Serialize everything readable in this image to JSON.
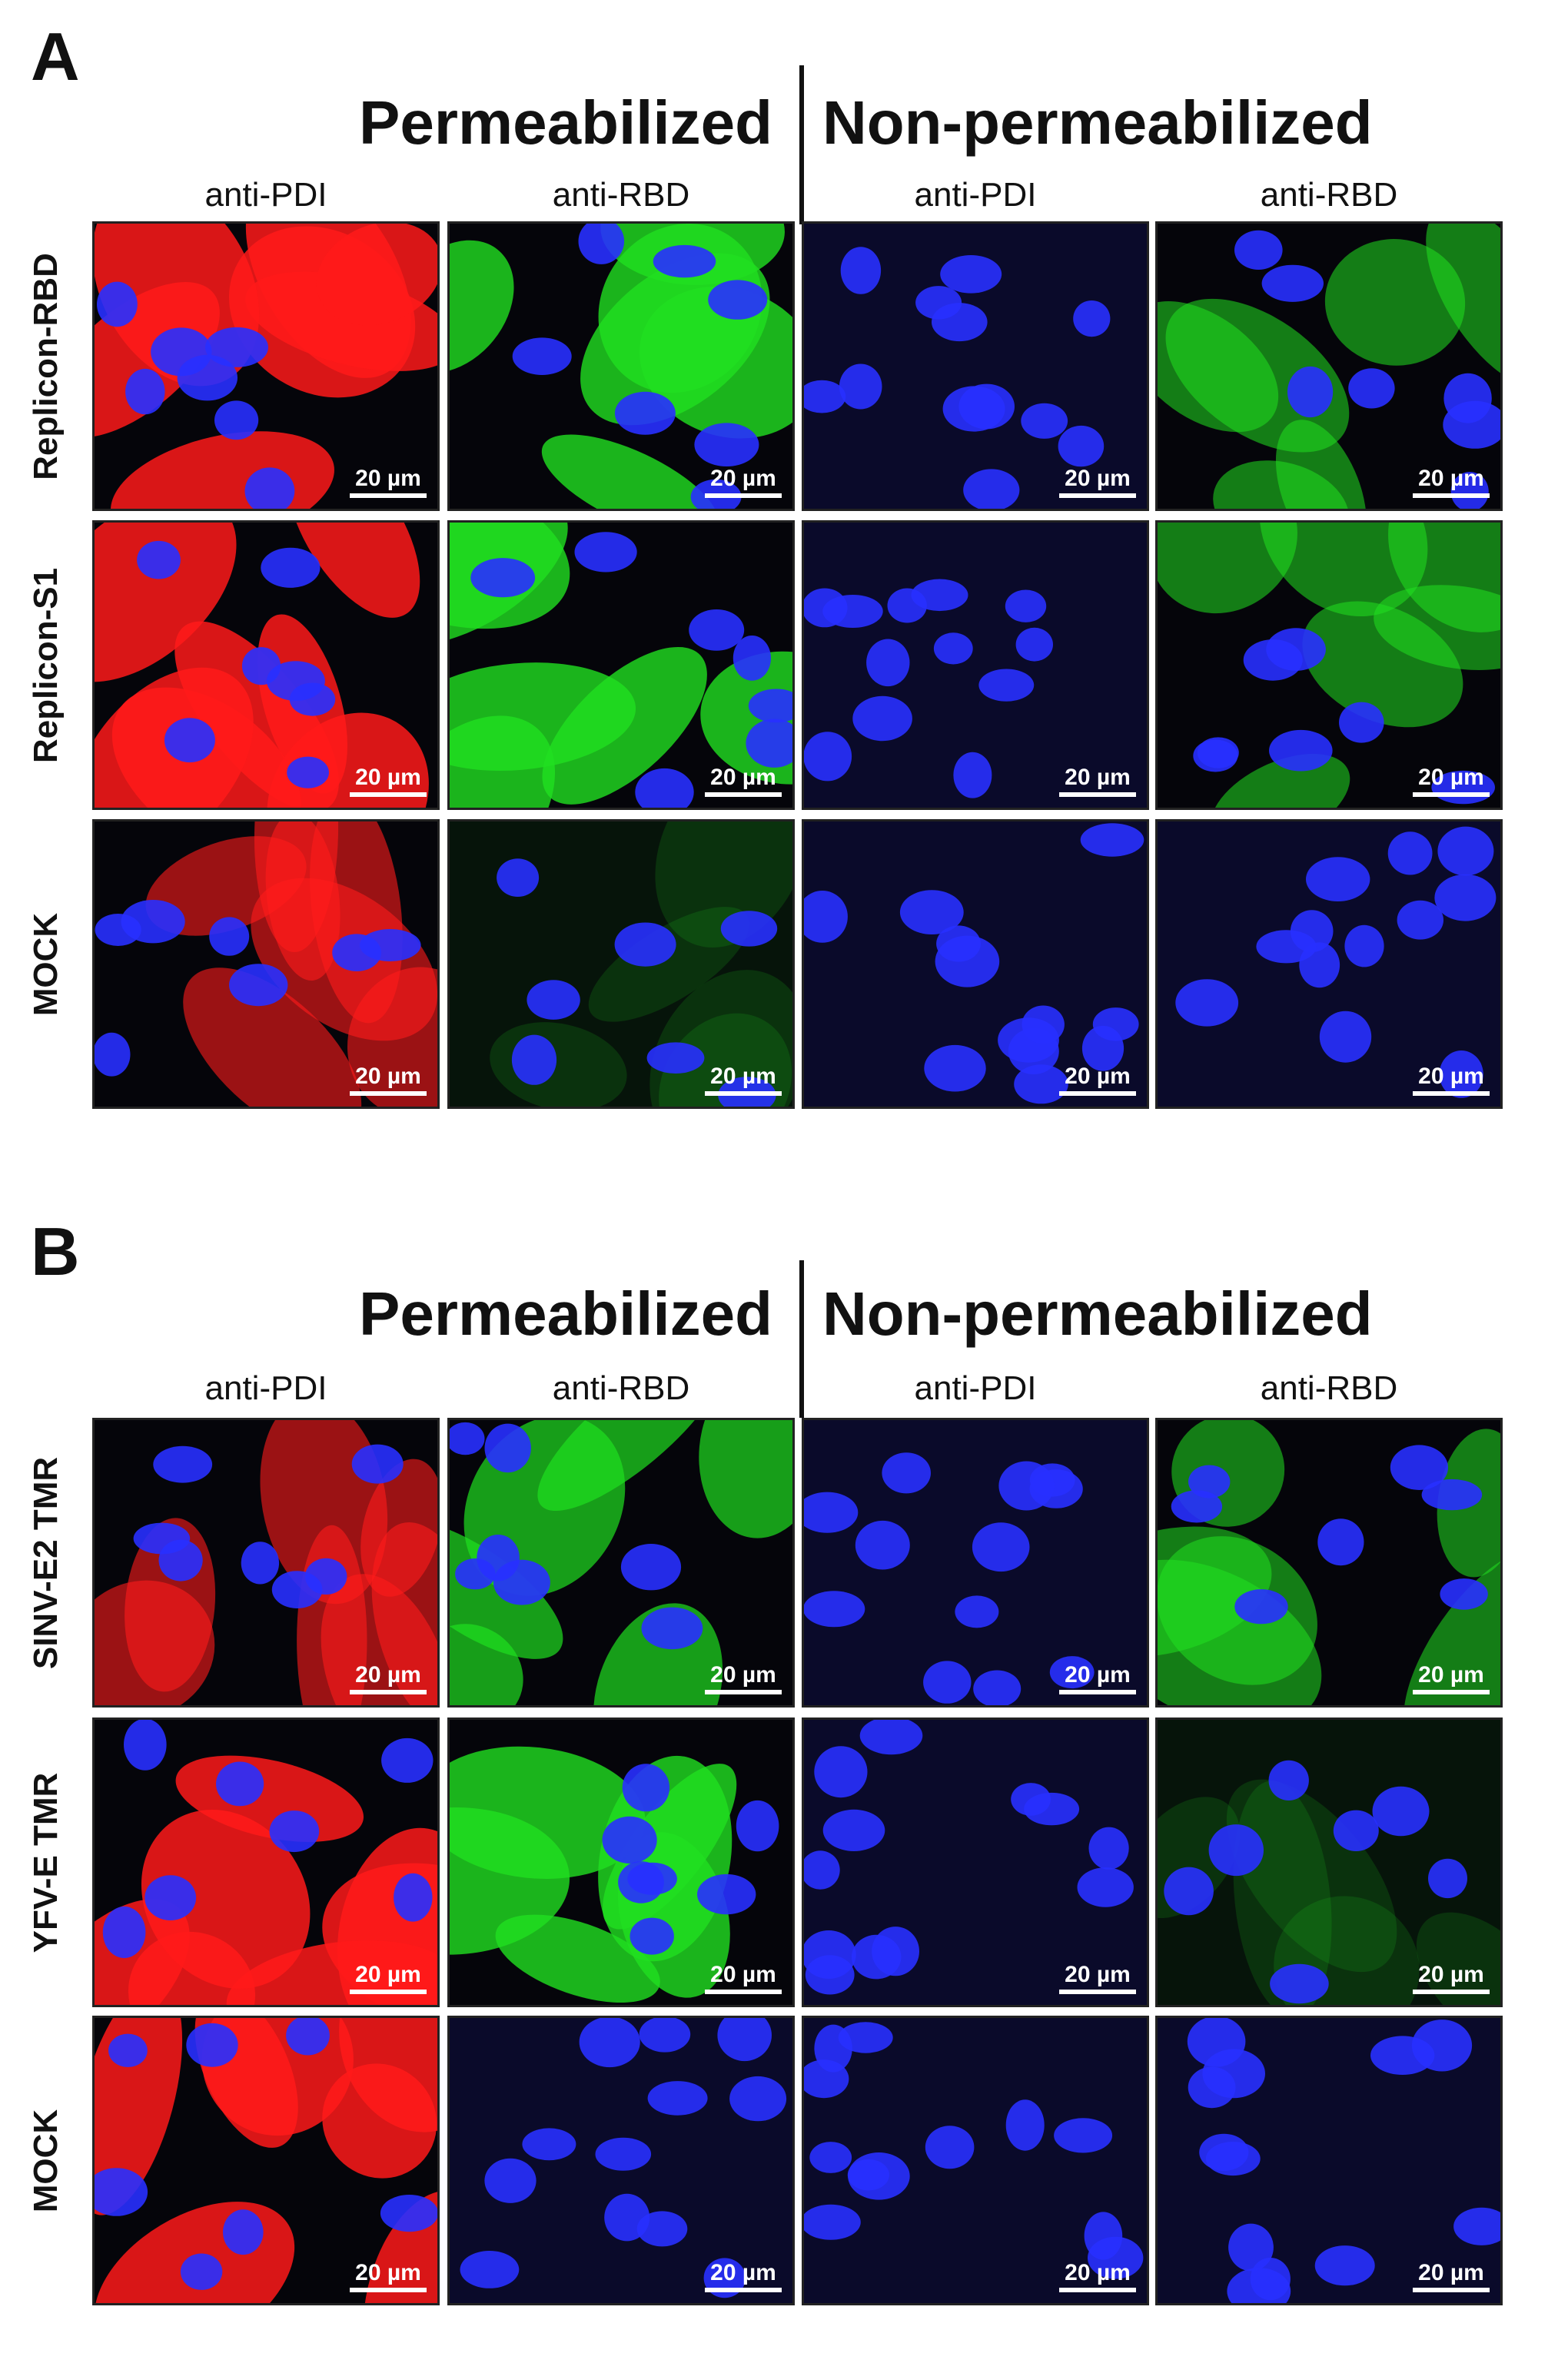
{
  "panels": [
    {
      "letter": "A",
      "condition_left": "Permeabilized",
      "condition_right": "Non-permeabilized",
      "columns": [
        "anti-PDI",
        "anti-RBD",
        "anti-PDI",
        "anti-RBD"
      ],
      "rows": [
        "Replicon-RBD",
        "Replicon-S1",
        "MOCK"
      ]
    },
    {
      "letter": "B",
      "condition_left": "Permeabilized",
      "condition_right": "Non-permeabilized",
      "columns": [
        "anti-PDI",
        "anti-RBD",
        "anti-PDI",
        "anti-RBD"
      ],
      "rows": [
        "SINV-E2 TMR",
        "YFV-E TMR",
        "MOCK"
      ]
    }
  ],
  "scale_bar_label": "20 µm",
  "colors": {
    "nuclei": "#2830ff",
    "pdi": "#ff1a1a",
    "rbd": "#20e020",
    "background": "#05050a"
  },
  "tile_stains": [
    [
      [
        "red-strong",
        "green-strong",
        "blue-only",
        "green-surface"
      ],
      [
        "red-strong",
        "green-strong",
        "blue-only",
        "green-surface"
      ],
      [
        "red-medium",
        "green-faint",
        "blue-only",
        "blue-only"
      ]
    ],
    [
      [
        "red-medium",
        "green-medium",
        "blue-only",
        "green-surface"
      ],
      [
        "red-strong",
        "green-strong",
        "blue-only",
        "green-faint"
      ],
      [
        "red-strong",
        "blue-only",
        "blue-only",
        "blue-only"
      ]
    ]
  ]
}
